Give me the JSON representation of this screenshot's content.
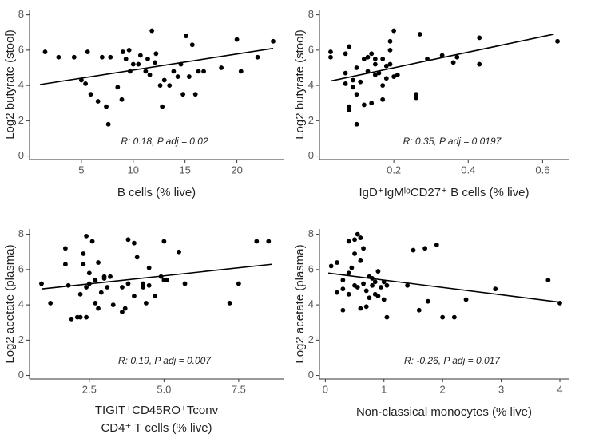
{
  "chart_data": [
    {
      "type": "scatter",
      "y_label": "Log2 butyrate (stool)",
      "x_label": "B cells (% live)",
      "annotation": "R: 0.18, P adj = 0.02",
      "color": "#000000",
      "xlim": [
        0,
        24.5
      ],
      "xticks": [
        5,
        10,
        15,
        20
      ],
      "ylim": [
        -0.2,
        8.3
      ],
      "yticks": [
        0,
        2,
        4,
        6,
        8
      ],
      "x": [
        1.5,
        2.8,
        4.3,
        5.0,
        5.4,
        5.6,
        5.9,
        6.6,
        7.0,
        7.4,
        7.6,
        7.8,
        8.5,
        8.9,
        9.0,
        9.3,
        9.6,
        9.7,
        10.0,
        10.5,
        10.7,
        11.2,
        11.4,
        11.6,
        11.8,
        12.1,
        12.2,
        12.6,
        12.8,
        13.0,
        13.5,
        13.9,
        14.3,
        14.6,
        14.8,
        15.1,
        15.4,
        15.7,
        16.0,
        16.3,
        16.8,
        18.5,
        20.0,
        20.4,
        22.0,
        23.5
      ],
      "y": [
        5.9,
        5.6,
        5.6,
        4.3,
        4.1,
        5.9,
        3.5,
        3.1,
        5.6,
        2.8,
        1.8,
        5.6,
        3.9,
        3.2,
        5.9,
        5.5,
        6.0,
        4.8,
        5.2,
        5.2,
        5.7,
        4.8,
        5.5,
        4.6,
        7.1,
        5.3,
        5.8,
        4.0,
        2.8,
        4.3,
        4.0,
        4.8,
        4.5,
        5.2,
        3.5,
        6.8,
        4.5,
        6.3,
        3.5,
        4.8,
        4.8,
        5.0,
        6.6,
        4.8,
        5.6,
        6.5
      ],
      "trend_line": {
        "x": [
          1,
          23.5
        ],
        "y": [
          4.05,
          6.1
        ]
      }
    },
    {
      "type": "scatter",
      "y_label": "Log2 butyrate (stool)",
      "x_label": "IgD⁺IgMˡᵒCD27⁺ B cells (% live)",
      "annotation": "R: 0.35, P adj = 0.0197",
      "color": "#000000",
      "xlim": [
        0,
        0.67
      ],
      "xticks": [
        0.2,
        0.4,
        0.6
      ],
      "ylim": [
        -0.2,
        8.3
      ],
      "yticks": [
        0,
        2,
        4,
        6,
        8
      ],
      "x": [
        0.03,
        0.03,
        0.07,
        0.08,
        0.07,
        0.07,
        0.08,
        0.08,
        0.09,
        0.09,
        0.1,
        0.1,
        0.1,
        0.11,
        0.12,
        0.12,
        0.13,
        0.13,
        0.14,
        0.14,
        0.15,
        0.15,
        0.15,
        0.16,
        0.17,
        0.17,
        0.17,
        0.18,
        0.18,
        0.19,
        0.19,
        0.19,
        0.2,
        0.2,
        0.21,
        0.26,
        0.26,
        0.27,
        0.29,
        0.33,
        0.36,
        0.37,
        0.43,
        0.43,
        0.64
      ],
      "y": [
        5.9,
        5.6,
        5.8,
        6.2,
        4.7,
        4.1,
        2.6,
        2.8,
        4.3,
        3.9,
        5.0,
        3.5,
        1.8,
        4.2,
        5.5,
        2.9,
        4.8,
        5.6,
        5.8,
        3.0,
        5.5,
        4.6,
        5.2,
        4.7,
        3.2,
        5.5,
        4.0,
        5.1,
        4.4,
        6.0,
        6.5,
        5.2,
        7.1,
        4.5,
        4.6,
        3.5,
        3.3,
        6.9,
        5.5,
        5.7,
        5.3,
        5.6,
        6.7,
        5.2,
        6.5
      ],
      "trend_line": {
        "x": [
          0.03,
          0.63
        ],
        "y": [
          4.25,
          6.9
        ]
      }
    },
    {
      "type": "scatter",
      "y_label": "Log2 acetate (plasma)",
      "x_label": [
        "TIGIT⁺CD45RO⁺Tconv",
        "CD4⁺ T cells (% live)"
      ],
      "annotation": "R: 0.19, P adj = 0.007",
      "color": "#000000",
      "xlim": [
        0.5,
        9
      ],
      "xticks": [
        {
          "value": 2.5,
          "label": "2.5"
        },
        {
          "value": 5,
          "label": "5.0"
        },
        {
          "value": 7.5,
          "label": "7.5"
        }
      ],
      "ylim": [
        -0.2,
        8.3
      ],
      "yticks": [
        0,
        2,
        4,
        6,
        8
      ],
      "x": [
        0.9,
        1.2,
        1.7,
        1.7,
        1.8,
        1.9,
        2.1,
        2.2,
        2.2,
        2.3,
        2.3,
        2.4,
        2.4,
        2.4,
        2.5,
        2.5,
        2.6,
        2.7,
        2.7,
        2.8,
        2.8,
        2.9,
        3.0,
        3.0,
        3.1,
        3.2,
        3.3,
        3.6,
        3.6,
        3.7,
        3.8,
        3.8,
        4.0,
        4.0,
        4.1,
        4.3,
        4.3,
        4.4,
        4.5,
        4.5,
        4.7,
        4.9,
        5.0,
        5.0,
        5.1,
        5.5,
        5.7,
        7.2,
        7.5,
        8.1,
        8.5
      ],
      "y": [
        5.2,
        4.1,
        6.3,
        7.2,
        5.1,
        3.2,
        3.3,
        3.3,
        4.6,
        6.3,
        6.9,
        3.3,
        5.0,
        7.9,
        5.2,
        5.8,
        7.6,
        4.1,
        5.4,
        3.8,
        6.4,
        4.7,
        5.5,
        5.6,
        5.0,
        5.6,
        4.0,
        3.6,
        5.0,
        3.8,
        5.2,
        7.7,
        4.5,
        7.5,
        6.7,
        5.0,
        5.2,
        4.1,
        6.1,
        5.1,
        4.5,
        5.6,
        7.6,
        5.4,
        5.4,
        7.0,
        5.2,
        4.1,
        5.2,
        7.6,
        7.6
      ],
      "trend_line": {
        "x": [
          0.9,
          8.6
        ],
        "y": [
          4.9,
          6.3
        ]
      }
    },
    {
      "type": "scatter",
      "y_label": "Log2 acetate (plasma)",
      "x_label": "Non-classical monocytes (% live)",
      "annotation": "R: -0.26, P adj = 0.017",
      "color": "#000000",
      "xlim": [
        -0.1,
        4.15
      ],
      "xticks": [
        0,
        1,
        2,
        3,
        4
      ],
      "ylim": [
        -0.2,
        8.3
      ],
      "yticks": [
        0,
        2,
        4,
        6,
        8
      ],
      "x": [
        0.1,
        0.2,
        0.2,
        0.3,
        0.3,
        0.3,
        0.4,
        0.4,
        0.4,
        0.45,
        0.5,
        0.5,
        0.5,
        0.55,
        0.55,
        0.6,
        0.6,
        0.6,
        0.65,
        0.65,
        0.7,
        0.7,
        0.75,
        0.75,
        0.8,
        0.8,
        0.85,
        0.85,
        0.9,
        0.9,
        0.95,
        1.0,
        1.0,
        1.05,
        1.05,
        1.4,
        1.5,
        1.6,
        1.7,
        1.75,
        1.9,
        2.0,
        2.2,
        2.4,
        2.9,
        3.8,
        4.0
      ],
      "y": [
        6.2,
        6.4,
        4.7,
        5.4,
        3.7,
        4.9,
        5.8,
        7.6,
        4.6,
        6.1,
        7.7,
        5.1,
        6.9,
        8.0,
        5.0,
        7.8,
        3.8,
        6.5,
        5.2,
        7.2,
        4.8,
        3.9,
        5.6,
        4.4,
        5.5,
        5.1,
        4.6,
        5.3,
        5.9,
        4.5,
        5.0,
        5.3,
        4.3,
        3.3,
        5.1,
        5.1,
        7.1,
        3.7,
        7.2,
        4.2,
        7.4,
        3.3,
        3.3,
        4.3,
        4.9,
        5.4,
        4.1
      ],
      "trend_line": {
        "x": [
          0.05,
          4.0
        ],
        "y": [
          5.8,
          4.15
        ]
      }
    }
  ]
}
